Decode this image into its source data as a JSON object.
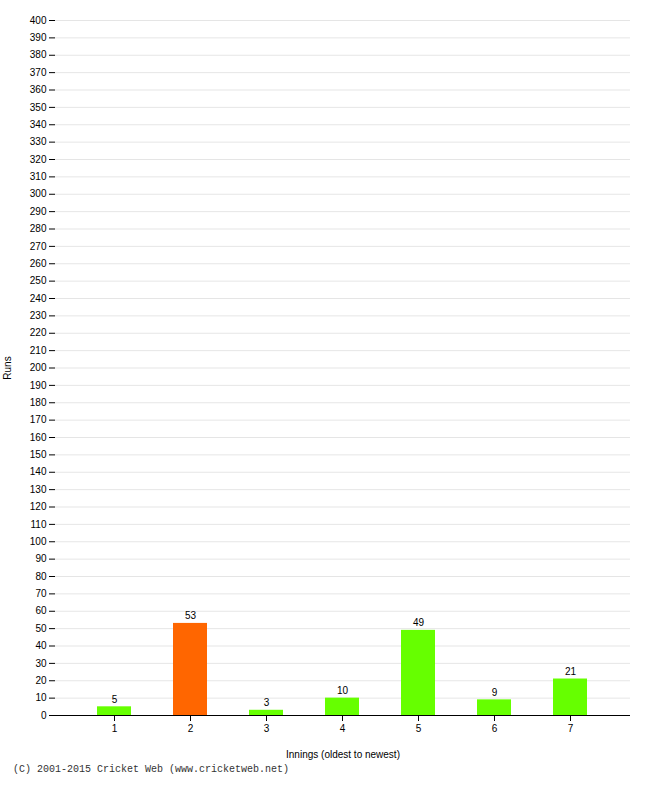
{
  "chart_data": {
    "type": "bar",
    "categories": [
      "1",
      "2",
      "3",
      "4",
      "5",
      "6",
      "7"
    ],
    "values": [
      5,
      53,
      3,
      10,
      49,
      9,
      21
    ],
    "colors": [
      "#66ff00",
      "#ff6600",
      "#66ff00",
      "#66ff00",
      "#66ff00",
      "#66ff00",
      "#66ff00"
    ],
    "xlabel": "Innings (oldest to newest)",
    "ylabel": "Runs",
    "ylim": [
      0,
      400
    ],
    "yticks": [
      0,
      10,
      20,
      30,
      40,
      50,
      60,
      70,
      80,
      90,
      100,
      110,
      120,
      130,
      140,
      150,
      160,
      170,
      180,
      190,
      200,
      210,
      220,
      230,
      240,
      250,
      260,
      270,
      280,
      290,
      300,
      310,
      320,
      330,
      340,
      350,
      360,
      370,
      380,
      390,
      400
    ],
    "grid": true,
    "data_labels": true,
    "annotations": [
      "(C) 2001-2015 Cricket Web (www.cricketweb.net)"
    ]
  }
}
